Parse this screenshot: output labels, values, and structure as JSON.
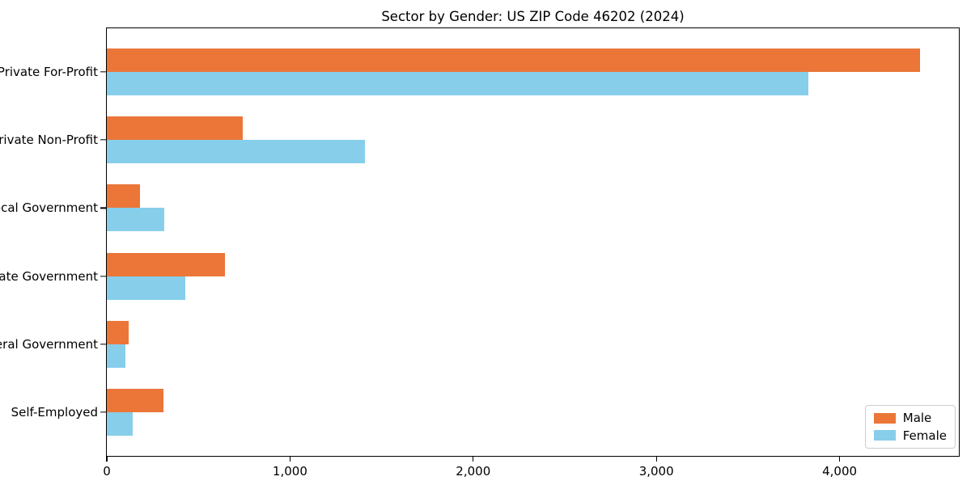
{
  "chart_data": {
    "type": "bar",
    "orientation": "horizontal",
    "title": "Sector by Gender: US ZIP Code 46202 (2024)",
    "categories": [
      "Private For-Profit",
      "Private Non-Profit",
      "Local Government",
      "State Government",
      "Federal Government",
      "Self-Employed"
    ],
    "series": [
      {
        "name": "Male",
        "color": "#EB7638",
        "values": [
          4440,
          740,
          180,
          645,
          120,
          310
        ]
      },
      {
        "name": "Female",
        "color": "#87CEEB",
        "values": [
          3830,
          1410,
          315,
          430,
          100,
          140
        ]
      }
    ],
    "xlabel": "",
    "ylabel": "",
    "xlim": [
      0,
      4660
    ],
    "xticks": [
      {
        "value": 0,
        "label": "0"
      },
      {
        "value": 1000,
        "label": "1,000"
      },
      {
        "value": 2000,
        "label": "2,000"
      },
      {
        "value": 3000,
        "label": "3,000"
      },
      {
        "value": 4000,
        "label": "4,000"
      }
    ],
    "grid": false,
    "legend_position": "lower right"
  }
}
